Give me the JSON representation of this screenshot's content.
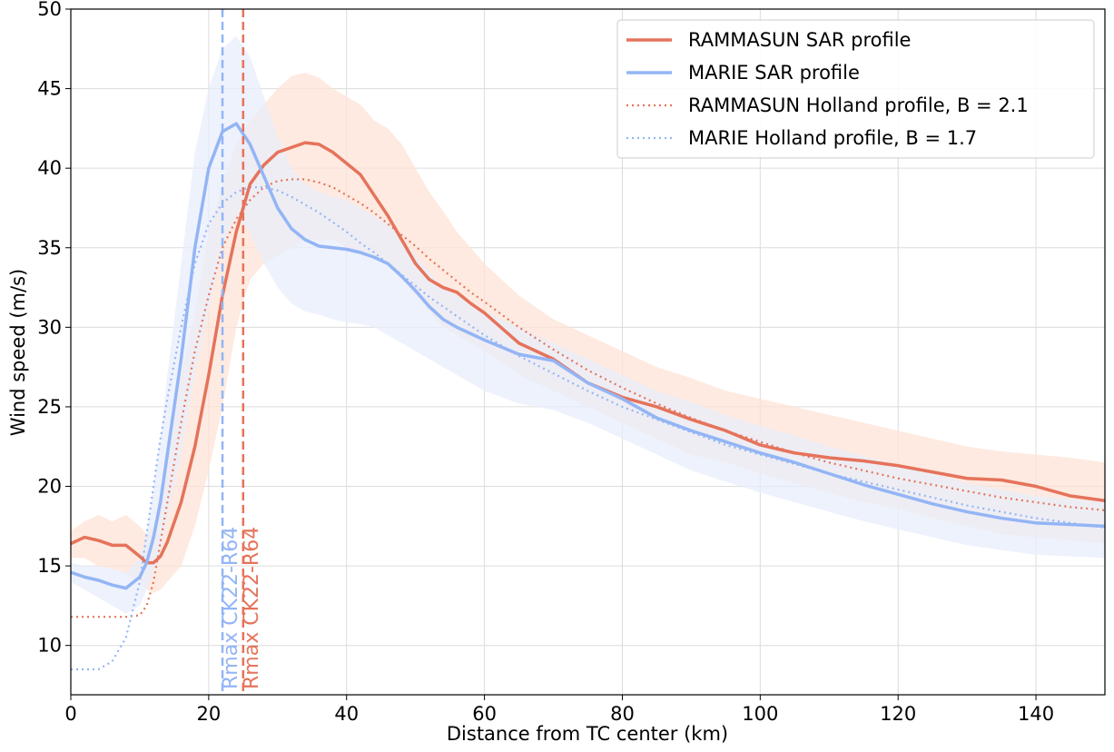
{
  "chart_data": {
    "type": "line",
    "xlabel": "Distance from TC center (km)",
    "ylabel": "Wind speed (m/s)",
    "xlim": [
      0,
      150
    ],
    "ylim": [
      6.9,
      50
    ],
    "xticks": [
      0,
      20,
      40,
      60,
      80,
      100,
      120,
      140
    ],
    "yticks": [
      10,
      15,
      20,
      25,
      30,
      35,
      40,
      45,
      50
    ],
    "grid": true,
    "legend": "upper right",
    "x": [
      0,
      2,
      4,
      6,
      8,
      10,
      11,
      12,
      13,
      14,
      16,
      18,
      20,
      22,
      24,
      26,
      28,
      30,
      32,
      34,
      36,
      38,
      40,
      42,
      44,
      46,
      48,
      50,
      52,
      54,
      56,
      58,
      60,
      65,
      70,
      75,
      80,
      85,
      90,
      95,
      100,
      105,
      110,
      115,
      120,
      125,
      130,
      135,
      140,
      145,
      150
    ],
    "series": [
      {
        "name": "RAMMASUN SAR profile",
        "color": "#e5735b",
        "style": "solid",
        "values": [
          16.4,
          16.8,
          16.6,
          16.3,
          16.3,
          15.6,
          15.2,
          15.2,
          15.6,
          16.5,
          19,
          22.5,
          27,
          32,
          36,
          39,
          40.2,
          41,
          41.3,
          41.6,
          41.5,
          41,
          40.3,
          39.6,
          38.3,
          37,
          35.5,
          34,
          33,
          32.5,
          32.2,
          31.5,
          30.9,
          29,
          28,
          26.5,
          25.6,
          25,
          24.2,
          23.5,
          22.6,
          22.1,
          21.8,
          21.6,
          21.3,
          20.9,
          20.5,
          20.4,
          20,
          19.4,
          19.1
        ],
        "band": {
          "color": "#fde3d6",
          "upper": [
            17.2,
            17.8,
            18.2,
            17.8,
            18.2,
            17.5,
            17,
            17.5,
            20,
            23,
            27,
            31,
            36,
            39,
            41.5,
            43,
            44,
            45,
            45.8,
            46,
            45.7,
            45,
            44.5,
            44,
            43,
            42.5,
            41.5,
            40,
            38.5,
            37.3,
            36,
            35,
            34,
            32,
            30.5,
            29.5,
            28.5,
            27.5,
            26.8,
            26,
            25.5,
            25,
            24.5,
            24,
            23.5,
            23,
            22.5,
            22.2,
            22,
            21.8,
            21.5
          ],
          "lower": [
            15.5,
            15.5,
            15,
            14.8,
            14.5,
            14,
            13.5,
            13.3,
            13.5,
            14,
            15,
            17.5,
            21,
            25,
            30,
            33,
            34,
            34.5,
            35,
            35.5,
            35.5,
            35.5,
            35,
            34.8,
            34.5,
            34,
            33,
            32,
            31,
            30,
            29.5,
            29,
            28.5,
            27,
            26,
            25,
            24,
            23,
            22,
            21.5,
            20.8,
            20.2,
            19.6,
            19,
            18.6,
            18,
            17.5,
            17,
            16.8,
            16.6,
            16.4
          ]
        }
      },
      {
        "name": "MARIE SAR profile",
        "color": "#93b5f5",
        "style": "solid",
        "values": [
          14.6,
          14.3,
          14.1,
          13.8,
          13.6,
          14.3,
          15.2,
          16.8,
          19,
          22,
          28,
          35,
          40,
          42.3,
          42.8,
          41.5,
          39.5,
          37.5,
          36.2,
          35.5,
          35.1,
          35,
          34.9,
          34.7,
          34.4,
          34,
          33.2,
          32.3,
          31.3,
          30.5,
          30,
          29.6,
          29.2,
          28.3,
          27.9,
          26.5,
          25.5,
          24.3,
          23.5,
          22.8,
          22.1,
          21.5,
          20.8,
          20.1,
          19.5,
          18.9,
          18.4,
          18,
          17.7,
          17.6,
          17.5
        ],
        "band": {
          "color": "#e8eefb",
          "upper": [
            15.2,
            15,
            15,
            14.8,
            14.6,
            15.5,
            17,
            20,
            23,
            27,
            34,
            41,
            45,
            47.5,
            48.3,
            47,
            44.5,
            42,
            40,
            39,
            38.5,
            38.2,
            38,
            37.5,
            37,
            36.5,
            35.5,
            34.5,
            33.5,
            32.5,
            32,
            31.5,
            31,
            30,
            29,
            28,
            27,
            26,
            25.3,
            24.5,
            23.8,
            23.2,
            22.5,
            21.9,
            21.3,
            20.8,
            20.2,
            19.8,
            19.4,
            19.2,
            19
          ],
          "lower": [
            14,
            13.5,
            13,
            12.5,
            12,
            12.5,
            13.5,
            14.5,
            16,
            18,
            22,
            27,
            31,
            35,
            37,
            36,
            34,
            32.5,
            31.5,
            31,
            30.8,
            30.5,
            30.3,
            30.2,
            30,
            29.5,
            29,
            28.5,
            28,
            27.5,
            27,
            26.5,
            26,
            25.2,
            24.8,
            24,
            23,
            22,
            21,
            20.3,
            19.6,
            19,
            18.4,
            17.8,
            17.3,
            16.8,
            16.3,
            16,
            15.7,
            15.6,
            15.5
          ]
        }
      },
      {
        "name": "RAMMASUN Holland profile, B = 2.1",
        "color": "#e5735b",
        "style": "dotted",
        "values": [
          11.8,
          11.8,
          11.8,
          11.8,
          11.8,
          11.9,
          12.5,
          14,
          16.5,
          19,
          24,
          28.5,
          32,
          35,
          36.8,
          38,
          38.8,
          39.2,
          39.3,
          39.3,
          39.1,
          38.8,
          38.3,
          37.8,
          37.2,
          36.5,
          35.8,
          35.1,
          34.3,
          33.6,
          32.9,
          32.2,
          31.6,
          30,
          28.6,
          27.3,
          26.2,
          25.2,
          24.3,
          23.5,
          22.8,
          22.1,
          21.5,
          21,
          20.5,
          20.1,
          19.7,
          19.3,
          19,
          18.7,
          18.5
        ]
      },
      {
        "name": "MARIE Holland profile, B = 1.7",
        "color": "#93b5f5",
        "style": "dotted",
        "values": [
          8.5,
          8.5,
          8.5,
          9,
          10.5,
          14,
          17,
          20,
          23,
          25.5,
          30,
          34,
          36.5,
          37.8,
          38.5,
          38.8,
          38.8,
          38.6,
          38.2,
          37.7,
          37.2,
          36.6,
          36,
          35.3,
          34.7,
          34,
          33.3,
          32.6,
          31.9,
          31.3,
          30.7,
          30.1,
          29.5,
          28.2,
          27.1,
          26,
          25,
          24.2,
          23.4,
          22.6,
          22,
          21.4,
          20.8,
          20.3,
          19.8,
          19.3,
          18.8,
          18.4,
          18,
          17.7,
          17.4
        ]
      }
    ],
    "vlines": [
      {
        "x": 22,
        "label": "Rmax CK22-R64",
        "color": "#93b5f5"
      },
      {
        "x": 25,
        "label": "Rmax CK22-R64",
        "color": "#e5735b"
      }
    ]
  }
}
